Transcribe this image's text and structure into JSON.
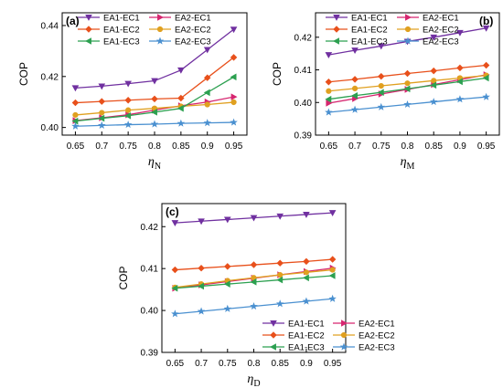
{
  "chart_data": [
    {
      "panel": "(a)",
      "type": "line",
      "xlabel": "η",
      "xlabel_sub": "N",
      "ylabel": "COP",
      "x": [
        0.65,
        0.7,
        0.75,
        0.8,
        0.85,
        0.9,
        0.95
      ],
      "xlim": [
        0.625,
        0.975
      ],
      "ylim": [
        0.397,
        0.445
      ],
      "yticks": [
        0.4,
        0.42,
        0.44
      ],
      "legend_placement": "top-center",
      "series": [
        {
          "name": "EA1-EC1",
          "color": "#7030a0",
          "marker": "triangle-down",
          "values": [
            0.4155,
            0.4162,
            0.4172,
            0.4183,
            0.4225,
            0.4305,
            0.4385
          ]
        },
        {
          "name": "EA2-EC1",
          "color": "#d6256f",
          "marker": "triangle-right",
          "values": [
            0.4027,
            0.4038,
            0.405,
            0.4068,
            0.4085,
            0.41,
            0.412
          ]
        },
        {
          "name": "EA1-EC2",
          "color": "#e8501b",
          "marker": "diamond",
          "values": [
            0.4097,
            0.4102,
            0.4107,
            0.4112,
            0.4115,
            0.4195,
            0.4275
          ]
        },
        {
          "name": "EA2-EC2",
          "color": "#e0a020",
          "marker": "circle",
          "values": [
            0.4049,
            0.4058,
            0.4068,
            0.4075,
            0.4083,
            0.409,
            0.4099
          ]
        },
        {
          "name": "EA1-EC3",
          "color": "#2ca050",
          "marker": "triangle-left",
          "values": [
            0.4025,
            0.4036,
            0.4046,
            0.406,
            0.4075,
            0.4137,
            0.4198
          ]
        },
        {
          "name": "EA2-EC3",
          "color": "#4a90d0",
          "marker": "star",
          "values": [
            0.4005,
            0.4008,
            0.4011,
            0.4013,
            0.4016,
            0.4018,
            0.402
          ]
        }
      ]
    },
    {
      "panel": "(b)",
      "type": "line",
      "xlabel": "η",
      "xlabel_sub": "M",
      "ylabel": "COP",
      "x": [
        0.65,
        0.7,
        0.75,
        0.8,
        0.85,
        0.9,
        0.95
      ],
      "xlim": [
        0.625,
        0.975
      ],
      "ylim": [
        0.39,
        0.4275
      ],
      "yticks": [
        0.39,
        0.4,
        0.41,
        0.42
      ],
      "legend_placement": "top-center",
      "series": [
        {
          "name": "EA1-EC1",
          "color": "#7030a0",
          "marker": "triangle-down",
          "values": [
            0.4146,
            0.416,
            0.4173,
            0.4187,
            0.42,
            0.4214,
            0.4228
          ]
        },
        {
          "name": "EA2-EC1",
          "color": "#d6256f",
          "marker": "triangle-right",
          "values": [
            0.3998,
            0.4012,
            0.4026,
            0.404,
            0.4055,
            0.407,
            0.4085
          ]
        },
        {
          "name": "EA1-EC2",
          "color": "#e8501b",
          "marker": "diamond",
          "values": [
            0.4063,
            0.4071,
            0.408,
            0.4089,
            0.4097,
            0.4106,
            0.4114
          ]
        },
        {
          "name": "EA2-EC2",
          "color": "#e0a020",
          "marker": "circle",
          "values": [
            0.4035,
            0.4043,
            0.4051,
            0.4059,
            0.4067,
            0.4075,
            0.4083
          ]
        },
        {
          "name": "EA1-EC3",
          "color": "#2ca050",
          "marker": "triangle-left",
          "values": [
            0.401,
            0.4021,
            0.4031,
            0.4042,
            0.4053,
            0.4064,
            0.4075
          ]
        },
        {
          "name": "EA2-EC3",
          "color": "#4a90d0",
          "marker": "star",
          "values": [
            0.397,
            0.3978,
            0.3986,
            0.3994,
            0.4002,
            0.401,
            0.4017
          ]
        }
      ]
    },
    {
      "panel": "(c)",
      "type": "line",
      "xlabel": "η",
      "xlabel_sub": "D",
      "ylabel": "COP",
      "x": [
        0.65,
        0.7,
        0.75,
        0.8,
        0.85,
        0.9,
        0.95
      ],
      "xlim": [
        0.625,
        0.975
      ],
      "ylim": [
        0.39,
        0.4255
      ],
      "yticks": [
        0.39,
        0.4,
        0.41,
        0.42
      ],
      "legend_placement": "bottom-center",
      "series": [
        {
          "name": "EA1-EC1",
          "color": "#7030a0",
          "marker": "triangle-down",
          "values": [
            0.4209,
            0.4213,
            0.4217,
            0.4221,
            0.4225,
            0.4229,
            0.4233
          ]
        },
        {
          "name": "EA2-EC1",
          "color": "#d6256f",
          "marker": "triangle-right",
          "values": [
            0.4053,
            0.4061,
            0.4069,
            0.4077,
            0.4085,
            0.4093,
            0.4101
          ]
        },
        {
          "name": "EA1-EC2",
          "color": "#e8501b",
          "marker": "diamond",
          "values": [
            0.4097,
            0.4101,
            0.4105,
            0.4109,
            0.4113,
            0.4117,
            0.4122
          ]
        },
        {
          "name": "EA2-EC2",
          "color": "#e0a020",
          "marker": "circle",
          "values": [
            0.4055,
            0.4063,
            0.4071,
            0.4078,
            0.4085,
            0.4091,
            0.4097
          ]
        },
        {
          "name": "EA1-EC3",
          "color": "#2ca050",
          "marker": "triangle-left",
          "values": [
            0.4053,
            0.4058,
            0.4063,
            0.4068,
            0.4073,
            0.4078,
            0.4083
          ]
        },
        {
          "name": "EA2-EC3",
          "color": "#4a90d0",
          "marker": "star",
          "values": [
            0.3992,
            0.3998,
            0.4004,
            0.401,
            0.4016,
            0.4022,
            0.4028
          ]
        }
      ]
    }
  ]
}
